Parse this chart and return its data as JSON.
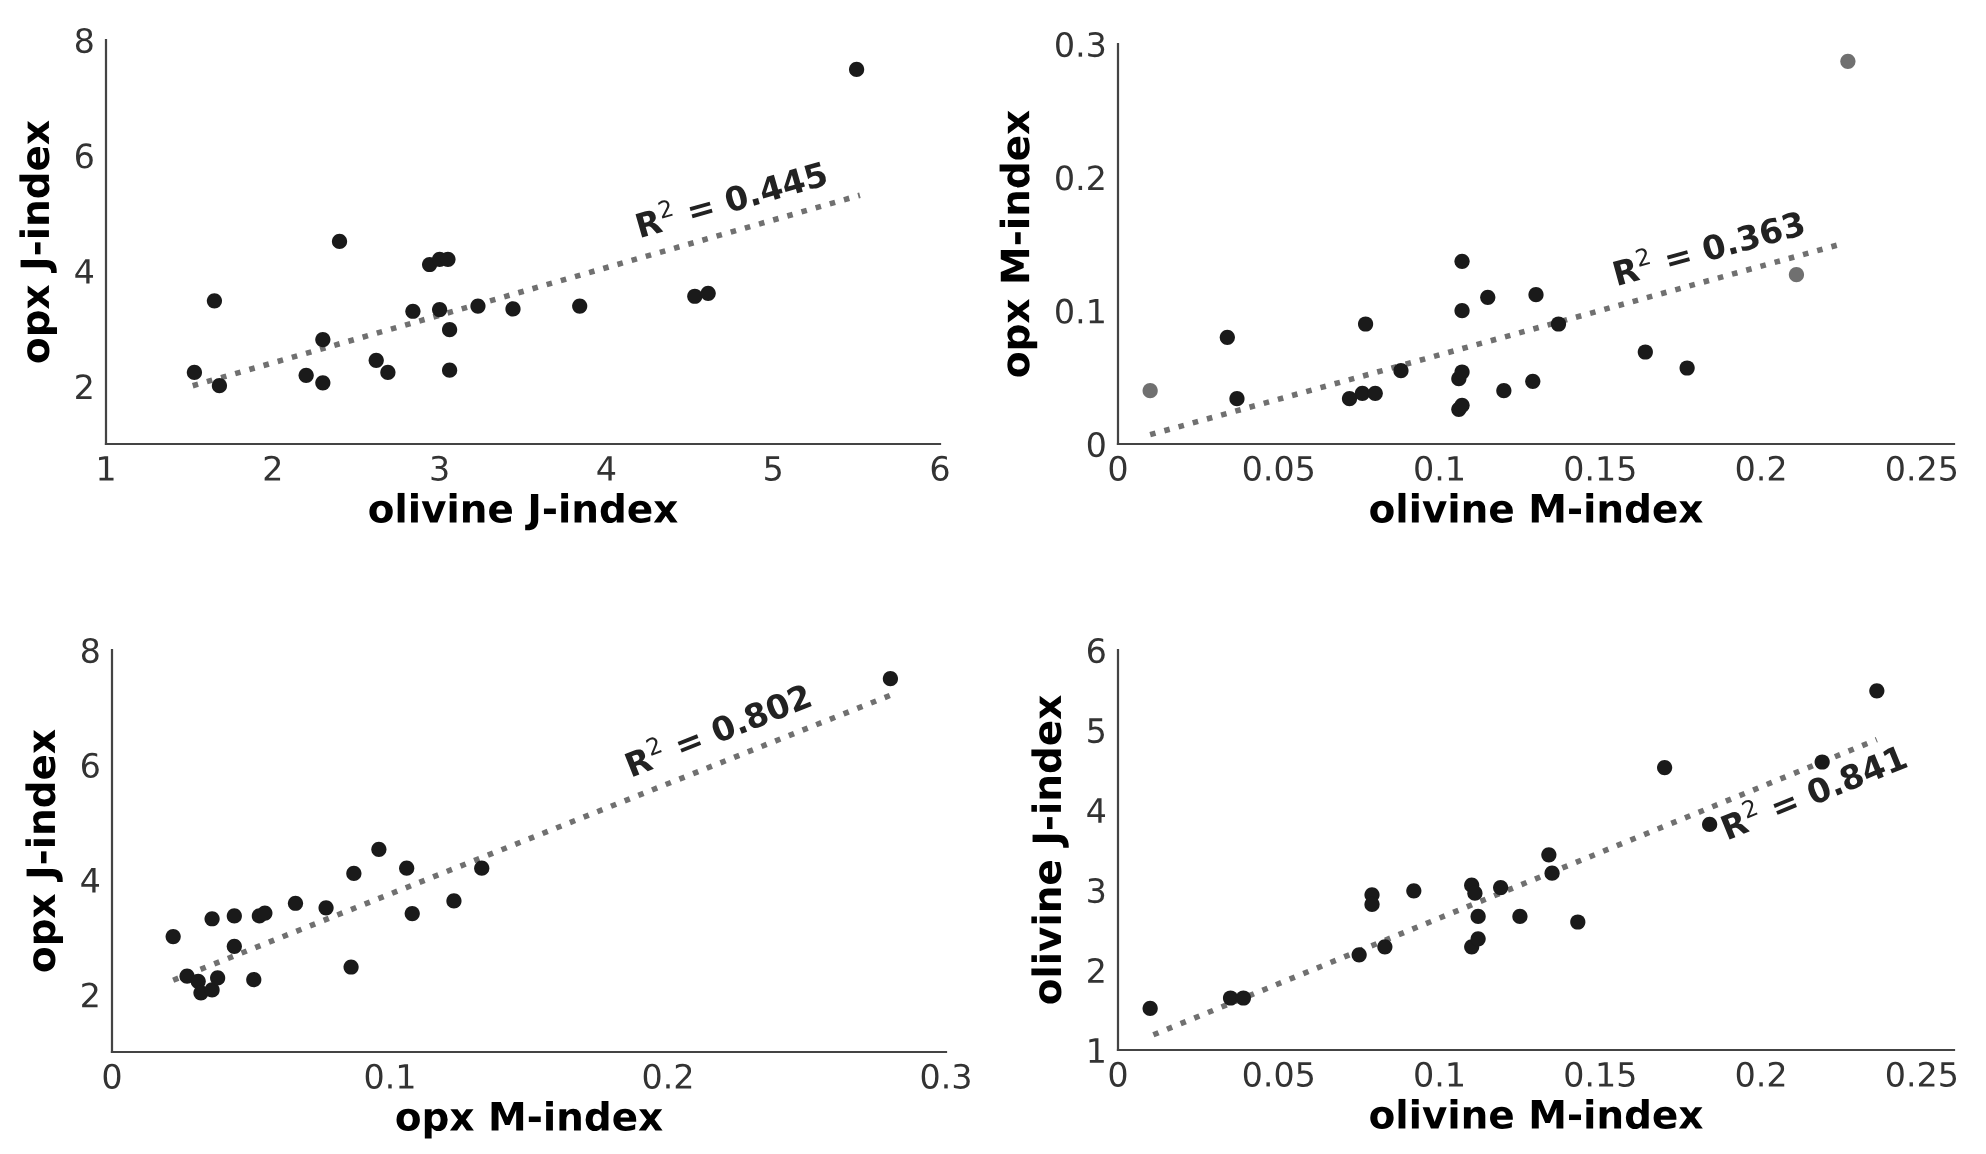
{
  "chart_data": [
    {
      "type": "scatter",
      "xlabel": "olivine J-index",
      "ylabel": "opx J-index",
      "xlim": [
        1,
        6
      ],
      "xticks": [
        1,
        2,
        3,
        4,
        5,
        6
      ],
      "ylim": [
        1,
        8
      ],
      "yticks": [
        2,
        4,
        6,
        8
      ],
      "grid": false,
      "marker": "circle",
      "series": [
        {
          "color": "#1a1a1a",
          "x": [
            1.53,
            1.65,
            1.68,
            2.2,
            2.3,
            2.3,
            2.4,
            2.62,
            2.69,
            2.84,
            2.94,
            3.0,
            3.05,
            3.0,
            3.06,
            3.06,
            3.23,
            3.44,
            3.84,
            4.53,
            4.61,
            5.5
          ],
          "values": [
            2.24,
            3.48,
            2.01,
            2.19,
            2.81,
            2.06,
            4.51,
            2.45,
            2.24,
            3.3,
            4.11,
            4.2,
            4.2,
            3.33,
            2.98,
            2.28,
            3.39,
            3.34,
            3.39,
            3.56,
            3.61,
            7.49
          ]
        },
        {
          "type": "line",
          "marker": "none",
          "color": "#707070",
          "line_style": "dotted",
          "x": [
            1.52,
            5.52
          ],
          "values": [
            2.01,
            5.31
          ]
        }
      ],
      "annotations": [
        "R$^{2}$ = 0.445"
      ]
    },
    {
      "type": "scatter",
      "xlabel": "olivine M-index",
      "ylabel": "opx M-index",
      "xlim": [
        0,
        0.26
      ],
      "xticks": [
        0,
        0.05,
        0.1,
        0.15,
        0.2,
        0.25
      ],
      "ylim": [
        0,
        0.3
      ],
      "yticks": [
        0,
        0.1,
        0.2,
        0.3
      ],
      "grid": false,
      "marker": "circle",
      "series": [
        {
          "color": "#1a1a1a",
          "x": [
            0.034,
            0.037,
            0.072,
            0.076,
            0.08,
            0.077,
            0.088,
            0.106,
            0.107,
            0.106,
            0.107,
            0.107,
            0.107,
            0.115,
            0.12,
            0.129,
            0.13,
            0.137,
            0.164,
            0.177
          ],
          "values": [
            0.08,
            0.034,
            0.034,
            0.038,
            0.038,
            0.09,
            0.055,
            0.049,
            0.054,
            0.026,
            0.029,
            0.137,
            0.1,
            0.11,
            0.04,
            0.047,
            0.112,
            0.09,
            0.069,
            0.057
          ]
        },
        {
          "color": "#707070",
          "x": [
            0.01,
            0.211,
            0.227
          ],
          "values": [
            0.04,
            0.127,
            0.287
          ]
        },
        {
          "type": "line",
          "marker": "none",
          "color": "#707070",
          "line_style": "dotted",
          "x": [
            0.01,
            0.225
          ],
          "values": [
            0.007,
            0.15
          ]
        }
      ],
      "annotations": [
        "R$^{2}$ = 0.363"
      ]
    },
    {
      "type": "scatter",
      "xlabel": "opx M-index",
      "ylabel": "opx J-index",
      "xlim": [
        0,
        0.3
      ],
      "xticks": [
        0,
        0.1,
        0.2,
        0.3
      ],
      "ylim": [
        1,
        8
      ],
      "yticks": [
        2,
        4,
        6,
        8
      ],
      "grid": false,
      "marker": "circle",
      "series": [
        {
          "color": "#1a1a1a",
          "x": [
            0.022,
            0.027,
            0.031,
            0.032,
            0.036,
            0.036,
            0.038,
            0.044,
            0.044,
            0.051,
            0.053,
            0.055,
            0.066,
            0.077,
            0.086,
            0.087,
            0.096,
            0.106,
            0.108,
            0.123,
            0.133,
            0.28
          ],
          "values": [
            3.01,
            2.32,
            2.23,
            2.03,
            3.32,
            2.08,
            2.29,
            3.37,
            2.84,
            2.26,
            3.37,
            3.42,
            3.59,
            3.51,
            2.48,
            4.11,
            4.53,
            4.2,
            3.41,
            3.63,
            4.2,
            7.5
          ]
        },
        {
          "type": "line",
          "marker": "none",
          "color": "#707070",
          "line_style": "dotted",
          "x": [
            0.022,
            0.282
          ],
          "values": [
            2.25,
            7.25
          ]
        }
      ],
      "annotations": [
        "R$^{2}$ = 0.802"
      ]
    },
    {
      "type": "scatter",
      "xlabel": "olivine M-index",
      "ylabel": "olivine J-index",
      "xlim": [
        0,
        0.26
      ],
      "xticks": [
        0,
        0.05,
        0.1,
        0.15,
        0.2,
        0.25
      ],
      "ylim": [
        1,
        6
      ],
      "yticks": [
        1,
        2,
        3,
        4,
        5,
        6
      ],
      "grid": false,
      "marker": "circle",
      "series": [
        {
          "color": "#1a1a1a",
          "x": [
            0.01,
            0.035,
            0.039,
            0.075,
            0.079,
            0.079,
            0.083,
            0.092,
            0.11,
            0.112,
            0.11,
            0.111,
            0.112,
            0.119,
            0.125,
            0.134,
            0.135,
            0.143,
            0.17,
            0.184,
            0.219,
            0.236
          ],
          "values": [
            1.52,
            1.65,
            1.65,
            2.19,
            2.94,
            2.82,
            2.29,
            2.99,
            2.29,
            2.39,
            3.06,
            2.96,
            2.67,
            3.03,
            2.67,
            3.44,
            3.21,
            2.6,
            4.53,
            3.82,
            4.6,
            5.49
          ]
        },
        {
          "type": "line",
          "marker": "none",
          "color": "#707070",
          "line_style": "dotted",
          "x": [
            0.011,
            0.236
          ],
          "values": [
            1.19,
            4.88
          ]
        }
      ],
      "annotations": [
        "R$^{2}$ = 0.841"
      ]
    }
  ]
}
